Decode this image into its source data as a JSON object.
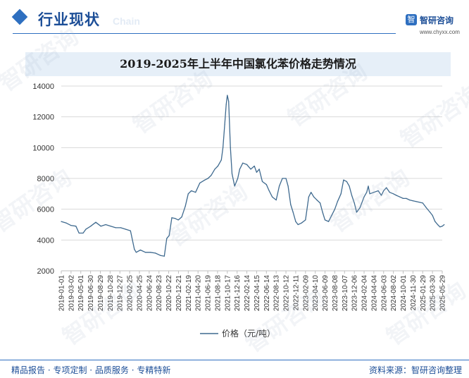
{
  "header": {
    "title": "行业现状",
    "subtitle": "Chain",
    "logo_mark": "智",
    "logo_name": "智研咨询",
    "logo_url": "www.chyxx.com"
  },
  "footer": {
    "slogan": "精品报告 · 专项定制 · 品质服务 · 专精特新",
    "source": "资料来源：智研咨询整理"
  },
  "watermark_text": "智研咨询",
  "colors": {
    "brand": "#2e6fc0",
    "line": "#3f6a8f",
    "title_band": "#e6eff8"
  },
  "chart_data": {
    "type": "line",
    "title": "2019-2025年上半年中国氯化苯价格走势情况",
    "ylim": [
      2000,
      14000
    ],
    "yticks": [
      2000,
      4000,
      6000,
      8000,
      10000,
      12000,
      14000
    ],
    "grid": true,
    "legend_position": "bottom",
    "xticks": [
      "2019-01-01",
      "2019-03-02",
      "2019-05-01",
      "2019-06-30",
      "2019-08-29",
      "2019-10-28",
      "2019-12-27",
      "2020-02-25",
      "2020-04-25",
      "2020-06-24",
      "2020-08-23",
      "2020-10-22",
      "2020-12-21",
      "2021-02-19",
      "2021-04-20",
      "2021-06-19",
      "2021-08-18",
      "2021-10-17",
      "2021-12-16",
      "2022-02-14",
      "2022-04-15",
      "2022-06-14",
      "2022-08-13",
      "2022-10-12",
      "2022-12-11",
      "2023-02-09",
      "2023-04-10",
      "2023-06-09",
      "2023-08-08",
      "2023-10-07",
      "2023-12-06",
      "2024-02-04",
      "2024-04-04",
      "2024-06-03",
      "2024-08-02",
      "2024-10-01",
      "2024-11-30",
      "2025-01-29",
      "2025-03-30",
      "2025-05-29"
    ],
    "series": [
      {
        "name": "价格（元/吨）",
        "points": [
          [
            "2019-01-01",
            5200
          ],
          [
            "2019-02-01",
            5100
          ],
          [
            "2019-03-01",
            4950
          ],
          [
            "2019-04-01",
            4900
          ],
          [
            "2019-04-20",
            4450
          ],
          [
            "2019-05-15",
            4450
          ],
          [
            "2019-06-01",
            4700
          ],
          [
            "2019-07-01",
            4900
          ],
          [
            "2019-08-01",
            5150
          ],
          [
            "2019-09-01",
            4900
          ],
          [
            "2019-10-01",
            5000
          ],
          [
            "2019-11-01",
            4900
          ],
          [
            "2019-12-01",
            4800
          ],
          [
            "2020-01-01",
            4800
          ],
          [
            "2020-02-01",
            4700
          ],
          [
            "2020-03-01",
            4600
          ],
          [
            "2020-03-25",
            3400
          ],
          [
            "2020-04-05",
            3200
          ],
          [
            "2020-05-01",
            3350
          ],
          [
            "2020-06-01",
            3200
          ],
          [
            "2020-07-01",
            3200
          ],
          [
            "2020-08-01",
            3150
          ],
          [
            "2020-09-01",
            3000
          ],
          [
            "2020-09-25",
            2950
          ],
          [
            "2020-10-10",
            4100
          ],
          [
            "2020-10-25",
            4300
          ],
          [
            "2020-11-10",
            5450
          ],
          [
            "2020-12-01",
            5400
          ],
          [
            "2020-12-20",
            5300
          ],
          [
            "2021-01-10",
            5500
          ],
          [
            "2021-02-01",
            6200
          ],
          [
            "2021-02-19",
            7000
          ],
          [
            "2021-03-10",
            7200
          ],
          [
            "2021-04-05",
            7100
          ],
          [
            "2021-05-01",
            7700
          ],
          [
            "2021-06-01",
            7900
          ],
          [
            "2021-06-20",
            8000
          ],
          [
            "2021-07-10",
            8200
          ],
          [
            "2021-08-01",
            8600
          ],
          [
            "2021-08-20",
            8800
          ],
          [
            "2021-09-10",
            9200
          ],
          [
            "2021-09-20",
            10000
          ],
          [
            "2021-10-01",
            11500
          ],
          [
            "2021-10-10",
            12800
          ],
          [
            "2021-10-17",
            13400
          ],
          [
            "2021-10-25",
            13000
          ],
          [
            "2021-11-05",
            10000
          ],
          [
            "2021-11-15",
            8300
          ],
          [
            "2021-12-01",
            7500
          ],
          [
            "2021-12-20",
            8000
          ],
          [
            "2022-01-01",
            8600
          ],
          [
            "2022-01-20",
            9000
          ],
          [
            "2022-02-14",
            8900
          ],
          [
            "2022-03-10",
            8600
          ],
          [
            "2022-04-01",
            8800
          ],
          [
            "2022-04-15",
            8400
          ],
          [
            "2022-05-01",
            8600
          ],
          [
            "2022-05-20",
            7800
          ],
          [
            "2022-06-14",
            7600
          ],
          [
            "2022-07-01",
            7200
          ],
          [
            "2022-07-20",
            6800
          ],
          [
            "2022-08-13",
            6600
          ],
          [
            "2022-09-01",
            7500
          ],
          [
            "2022-09-20",
            8000
          ],
          [
            "2022-10-12",
            8000
          ],
          [
            "2022-10-25",
            7500
          ],
          [
            "2022-11-10",
            6300
          ],
          [
            "2022-11-25",
            5800
          ],
          [
            "2022-12-11",
            5200
          ],
          [
            "2022-12-25",
            5000
          ],
          [
            "2023-01-15",
            5100
          ],
          [
            "2023-02-09",
            5300
          ],
          [
            "2023-03-01",
            6800
          ],
          [
            "2023-03-15",
            7100
          ],
          [
            "2023-04-01",
            6800
          ],
          [
            "2023-04-20",
            6600
          ],
          [
            "2023-05-10",
            6400
          ],
          [
            "2023-05-25",
            5800
          ],
          [
            "2023-06-09",
            5300
          ],
          [
            "2023-07-01",
            5200
          ],
          [
            "2023-07-20",
            5600
          ],
          [
            "2023-08-08",
            6000
          ],
          [
            "2023-08-25",
            6500
          ],
          [
            "2023-09-15",
            7000
          ],
          [
            "2023-10-01",
            7900
          ],
          [
            "2023-10-20",
            7800
          ],
          [
            "2023-11-05",
            7500
          ],
          [
            "2023-11-20",
            6900
          ],
          [
            "2023-12-06",
            6400
          ],
          [
            "2023-12-20",
            5800
          ],
          [
            "2024-01-10",
            6100
          ],
          [
            "2024-02-04",
            6800
          ],
          [
            "2024-02-20",
            7100
          ],
          [
            "2024-03-01",
            7500
          ],
          [
            "2024-03-10",
            7000
          ],
          [
            "2024-04-04",
            7100
          ],
          [
            "2024-05-01",
            7200
          ],
          [
            "2024-05-20",
            6900
          ],
          [
            "2024-06-03",
            7200
          ],
          [
            "2024-06-20",
            7400
          ],
          [
            "2024-07-10",
            7100
          ],
          [
            "2024-08-02",
            7000
          ],
          [
            "2024-08-20",
            6900
          ],
          [
            "2024-09-10",
            6800
          ],
          [
            "2024-10-01",
            6700
          ],
          [
            "2024-10-20",
            6700
          ],
          [
            "2024-11-10",
            6600
          ],
          [
            "2024-11-30",
            6550
          ],
          [
            "2024-12-20",
            6500
          ],
          [
            "2025-01-29",
            6400
          ],
          [
            "2025-02-20",
            6100
          ],
          [
            "2025-03-15",
            5800
          ],
          [
            "2025-03-30",
            5600
          ],
          [
            "2025-04-15",
            5200
          ],
          [
            "2025-05-01",
            5000
          ],
          [
            "2025-05-15",
            4850
          ],
          [
            "2025-05-29",
            4900
          ],
          [
            "2025-06-10",
            5000
          ]
        ]
      }
    ]
  }
}
